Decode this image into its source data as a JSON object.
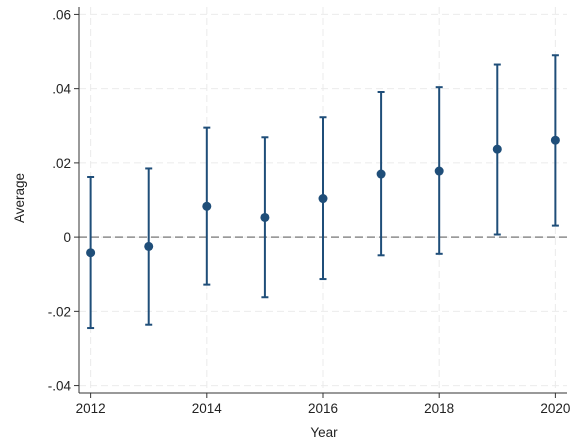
{
  "chart_data": {
    "type": "scatter",
    "subtype": "point-estimate-with-confidence-intervals",
    "title": "",
    "xlabel": "Year",
    "ylabel": "Average",
    "xlim": [
      2012,
      2020
    ],
    "ylim": [
      -0.04,
      0.06
    ],
    "x_ticks": [
      2012,
      2014,
      2016,
      2018,
      2020
    ],
    "x_tick_labels": [
      "2012",
      "2014",
      "2016",
      "2018",
      "2020"
    ],
    "y_ticks": [
      -0.04,
      -0.02,
      0,
      0.02,
      0.04,
      0.06
    ],
    "y_tick_labels": [
      "-.04",
      "-.02",
      "0",
      ".02",
      ".04",
      ".06"
    ],
    "grid": true,
    "reference_line": {
      "y": 0,
      "style": "dashed"
    },
    "series": [
      {
        "x": [
          2012,
          2013,
          2014,
          2015,
          2016,
          2017,
          2018,
          2019,
          2020
        ],
        "estimate": [
          -0.0042,
          -0.0025,
          0.0083,
          0.0053,
          0.0104,
          0.017,
          0.0178,
          0.0237,
          0.0261
        ],
        "ci_low": [
          -0.0245,
          -0.0236,
          -0.0128,
          -0.0162,
          -0.0113,
          -0.0049,
          -0.0045,
          0.0007,
          0.0031
        ],
        "ci_high": [
          0.0162,
          0.0185,
          0.0295,
          0.0269,
          0.0323,
          0.0391,
          0.0404,
          0.0465,
          0.049
        ]
      }
    ],
    "colors": {
      "series": "#1f4e79",
      "grid": "#ebebeb",
      "reference_line": "#8c8c8c",
      "axis": "#333333"
    }
  }
}
